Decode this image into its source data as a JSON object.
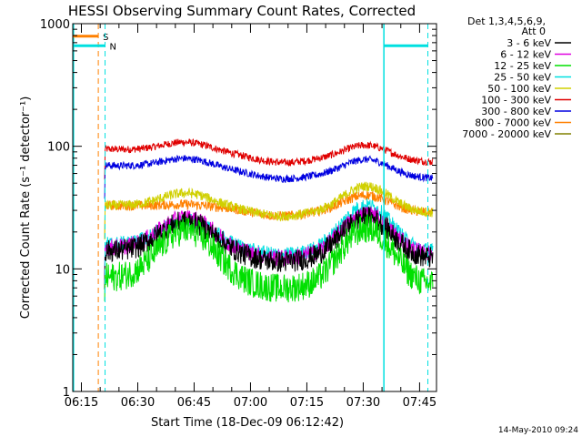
{
  "chart_data": {
    "type": "line",
    "title": "HESSI Observing Summary Count Rates, Corrected",
    "xlabel": "Start Time (18-Dec-09 06:12:42)",
    "ylabel": "Corrected Count Rate (s⁻¹ detector⁻¹)",
    "yscale": "log",
    "ylim": [
      1,
      1000
    ],
    "xlim_minutes": [
      372.7,
      469.5
    ],
    "x_ticks": [
      {
        "label": "06:15",
        "value": 375
      },
      {
        "label": "06:30",
        "value": 390
      },
      {
        "label": "06:45",
        "value": 405
      },
      {
        "label": "07:00",
        "value": 420
      },
      {
        "label": "07:15",
        "value": 435
      },
      {
        "label": "07:30",
        "value": 450
      },
      {
        "label": "07:45",
        "value": 465
      }
    ],
    "y_ticks": [
      {
        "label": "1",
        "value": 1
      },
      {
        "label": "10",
        "value": 10
      },
      {
        "label": "100",
        "value": 100
      },
      {
        "label": "1000",
        "value": 1000
      }
    ],
    "legend_header": [
      "Det 1,3,4,5,6,9,",
      "Att 0"
    ],
    "legend_position": "right",
    "series": [
      {
        "name": "3 - 6 keV",
        "color": "#000000",
        "baseline": 14,
        "bump1": 1.8,
        "bump2": 2.1,
        "noise": 0.09
      },
      {
        "name": "6 - 12 keV",
        "color": "#e000e0",
        "baseline": 15,
        "bump1": 1.8,
        "bump2": 2.1,
        "noise": 0.07
      },
      {
        "name": "12 - 25 keV",
        "color": "#00e000",
        "baseline": 8.5,
        "bump1": 2.5,
        "bump2": 2.8,
        "noise": 0.12
      },
      {
        "name": "25 - 50 keV",
        "color": "#00e0e0",
        "baseline": 16,
        "bump1": 1.6,
        "bump2": 2.3,
        "noise": 0.06
      },
      {
        "name": "50 - 100 keV",
        "color": "#d0d000",
        "baseline": 33,
        "bump1": 1.3,
        "bump2": 1.6,
        "noise": 0.04
      },
      {
        "name": "100 - 300 keV",
        "color": "#e00000",
        "baseline": 95,
        "bump1": 1.2,
        "bump2": 1.3,
        "noise": 0.03
      },
      {
        "name": "300 - 800 keV",
        "color": "#0000e0",
        "baseline": 70,
        "bump1": 1.2,
        "bump2": 1.35,
        "noise": 0.03
      },
      {
        "name": "800 - 7000 keV",
        "color": "#ff8000",
        "baseline": 33,
        "bump1": 1.05,
        "bump2": 1.35,
        "noise": 0.04
      },
      {
        "name": "7000 - 20000 keV",
        "color": "#808000",
        "baseline": 0,
        "bump1": 0,
        "bump2": 0,
        "noise": 0
      }
    ],
    "flag_markers": [
      {
        "label": "S",
        "color": "#ff8000",
        "start": 372.7,
        "end": 379.5,
        "value": 790,
        "dashed_at": 379.5
      },
      {
        "label": "N",
        "color": "#00e0e0",
        "start": 372.7,
        "end": 381.3,
        "value": 660,
        "dashed_at": 381.3
      },
      {
        "label": "",
        "color": "#00e0e0",
        "start": 455.5,
        "end": 467.2,
        "value": 660,
        "dashed_at": 467.2
      }
    ],
    "night_boundaries_solid": [
      372.9,
      455.5
    ],
    "data_range": [
      381.2,
      468.5
    ]
  },
  "footer": {
    "timestamp": "14-May-2010 09:24"
  }
}
